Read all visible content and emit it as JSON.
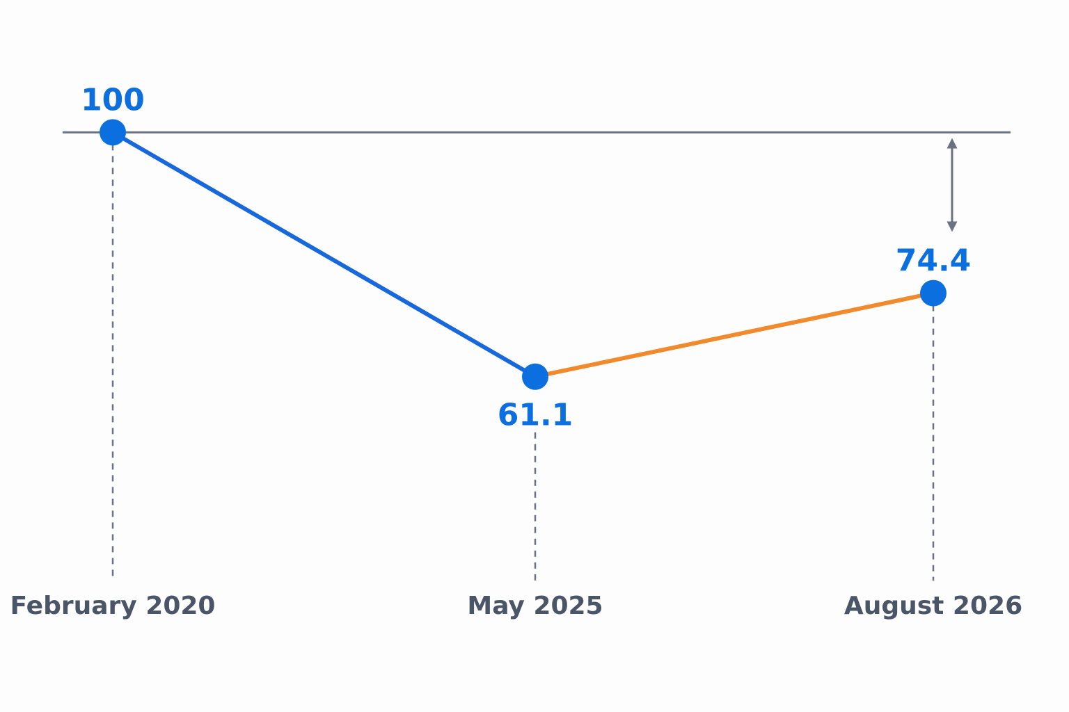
{
  "chart_data": {
    "type": "line",
    "categories": [
      "February 2020",
      "May 2025",
      "August 2026"
    ],
    "series": [
      {
        "color": "#0b6fe0",
        "values": [
          100,
          61.1,
          74.4
        ]
      }
    ],
    "segment_colors": [
      "#1668dc",
      "#f08a2c"
    ],
    "reference_line": 100,
    "ylim": [
      50,
      110
    ]
  }
}
